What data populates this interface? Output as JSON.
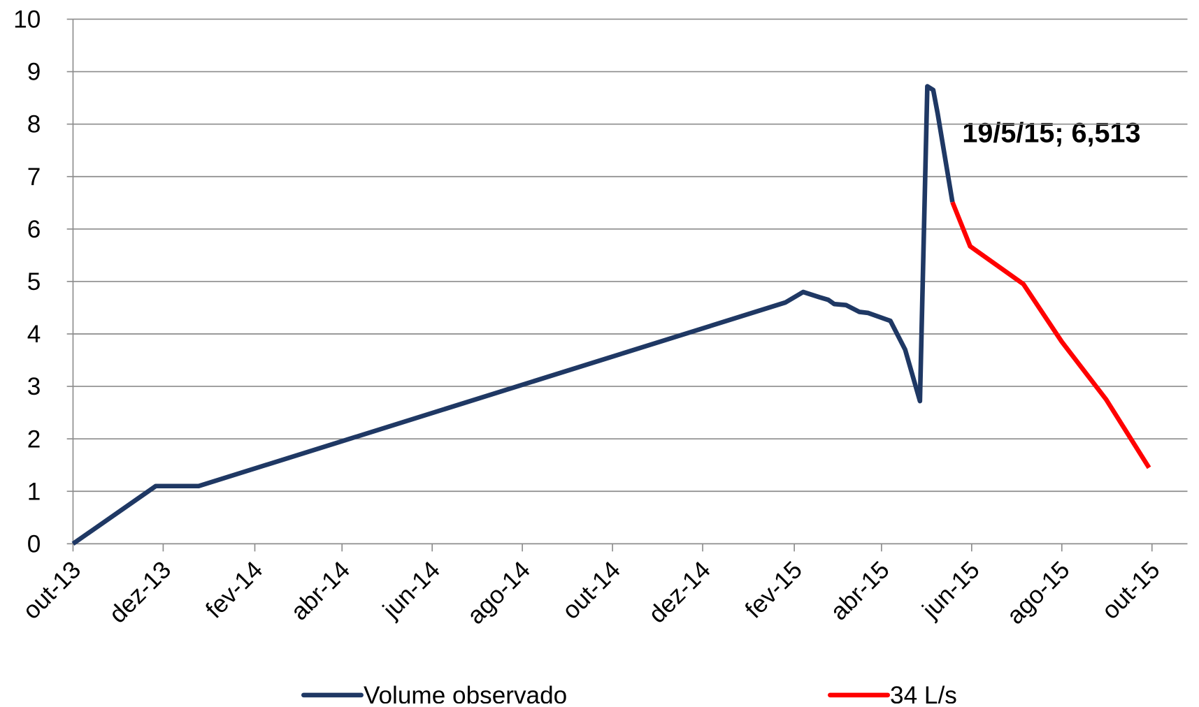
{
  "chart_data": {
    "type": "line",
    "annotation": "19/5/15; 6,513",
    "xlim": [
      "2013-10-01",
      "2015-10-25"
    ],
    "xticks": [
      {
        "value": "2013-10-01",
        "label": "out-13"
      },
      {
        "value": "2013-12-01",
        "label": "dez-13"
      },
      {
        "value": "2014-02-01",
        "label": "fev-14"
      },
      {
        "value": "2014-04-01",
        "label": "abr-14"
      },
      {
        "value": "2014-06-01",
        "label": "jun-14"
      },
      {
        "value": "2014-08-01",
        "label": "ago-14"
      },
      {
        "value": "2014-10-01",
        "label": "out-14"
      },
      {
        "value": "2014-12-01",
        "label": "dez-14"
      },
      {
        "value": "2015-02-01",
        "label": "fev-15"
      },
      {
        "value": "2015-04-01",
        "label": "abr-15"
      },
      {
        "value": "2015-06-01",
        "label": "jun-15"
      },
      {
        "value": "2015-08-01",
        "label": "ago-15"
      },
      {
        "value": "2015-10-01",
        "label": "out-15"
      }
    ],
    "ylim": [
      0,
      10
    ],
    "yticks": [
      0,
      1,
      2,
      3,
      4,
      5,
      6,
      7,
      8,
      9,
      10
    ],
    "grid": true,
    "legend": "bottom",
    "series": [
      {
        "name": "Volume observado",
        "color": "#1f3864",
        "x": [
          "2013-10-01",
          "2013-11-26",
          "2013-12-25",
          "2015-01-26",
          "2015-02-07",
          "2015-02-18",
          "2015-02-24",
          "2015-02-28",
          "2015-03-08",
          "2015-03-17",
          "2015-03-23",
          "2015-04-07",
          "2015-04-17",
          "2015-04-27",
          "2015-05-02",
          "2015-05-06",
          "2015-05-09",
          "2015-05-19"
        ],
        "values": [
          0,
          1.1,
          1.1,
          4.6,
          4.8,
          4.7,
          4.65,
          4.57,
          4.55,
          4.42,
          4.4,
          4.25,
          3.7,
          2.72,
          8.72,
          8.65,
          8.2,
          6.513
        ]
      },
      {
        "name": "34 L/s",
        "color": "#ff0000",
        "x": [
          "2015-05-19",
          "2015-05-31",
          "2015-07-06",
          "2015-08-01",
          "2015-08-31",
          "2015-09-29"
        ],
        "values": [
          6.513,
          5.67,
          4.95,
          3.85,
          2.75,
          1.45
        ]
      }
    ]
  }
}
